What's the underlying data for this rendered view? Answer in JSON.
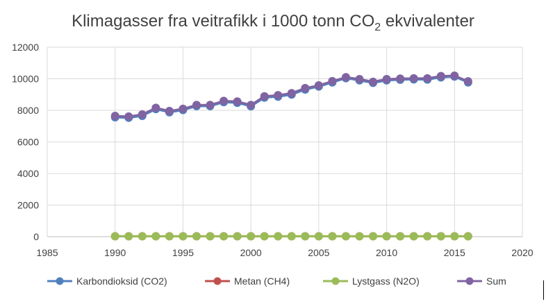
{
  "chart_data": {
    "type": "scatter",
    "title": "Klimagasser fra veitrafikk i 1000 tonn CO",
    "title_sub": "2",
    "title_suffix": " ekvivalenter",
    "xlabel": "",
    "ylabel": "",
    "xlim": [
      1985,
      2020
    ],
    "ylim": [
      0,
      12000
    ],
    "x_ticks": [
      1985,
      1990,
      1995,
      2000,
      2005,
      2010,
      2015,
      2020
    ],
    "y_ticks": [
      0,
      2000,
      4000,
      6000,
      8000,
      10000,
      12000
    ],
    "grid": true,
    "legend_position": "bottom",
    "x": [
      1990,
      1991,
      1992,
      1993,
      1994,
      1995,
      1996,
      1997,
      1998,
      1999,
      2000,
      2001,
      2002,
      2003,
      2004,
      2005,
      2006,
      2007,
      2008,
      2009,
      2010,
      2011,
      2012,
      2013,
      2014,
      2015,
      2016
    ],
    "series": [
      {
        "name": "Karbondioksid (CO2)",
        "color": "#4f81bd",
        "values": [
          7560,
          7530,
          7650,
          8080,
          7880,
          8020,
          8270,
          8270,
          8520,
          8480,
          8260,
          8810,
          8870,
          9000,
          9320,
          9510,
          9770,
          10040,
          9900,
          9740,
          9900,
          9940,
          9960,
          9950,
          10090,
          10140,
          9770
        ]
      },
      {
        "name": "Metan (CH4)",
        "color": "#c0504d",
        "values": [
          30,
          30,
          30,
          30,
          30,
          30,
          30,
          30,
          30,
          30,
          30,
          30,
          30,
          30,
          30,
          30,
          30,
          30,
          30,
          30,
          30,
          30,
          30,
          30,
          30,
          30,
          30
        ]
      },
      {
        "name": "Lystgass (N2O)",
        "color": "#9bbb59",
        "values": [
          20,
          20,
          20,
          20,
          20,
          20,
          20,
          20,
          20,
          20,
          20,
          20,
          20,
          20,
          20,
          20,
          20,
          20,
          20,
          20,
          20,
          20,
          20,
          20,
          20,
          20,
          20
        ]
      },
      {
        "name": "Sum",
        "color": "#8064a2",
        "values": [
          7650,
          7610,
          7740,
          8160,
          7960,
          8100,
          8340,
          8340,
          8600,
          8560,
          8340,
          8890,
          8960,
          9090,
          9410,
          9580,
          9850,
          10100,
          9980,
          9810,
          9980,
          10010,
          10030,
          10030,
          10170,
          10200,
          9840
        ]
      }
    ]
  }
}
